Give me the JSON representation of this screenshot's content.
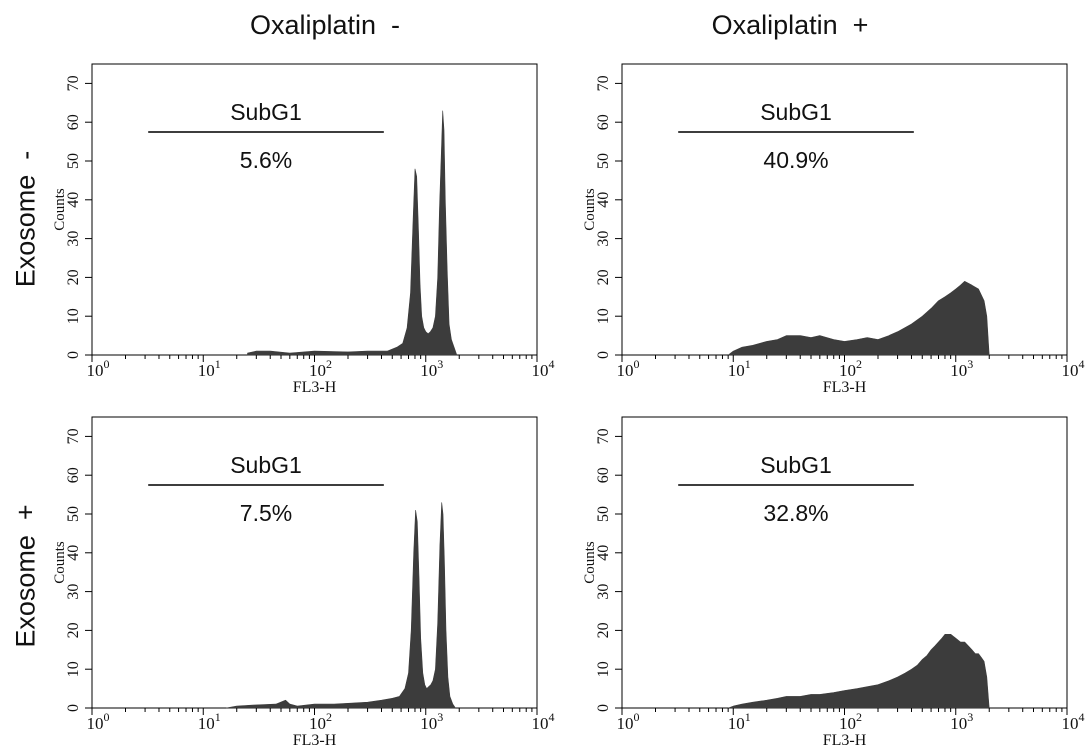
{
  "figure": {
    "column_headers": [
      "Oxaliplatin  -",
      "Oxaliplatin  +"
    ],
    "row_headers": [
      "Exosome  -",
      "Exosome  +"
    ]
  },
  "colors": {
    "histogram_fill": "#3c3c3c",
    "axis": "#000000",
    "gate_line": "#222222"
  },
  "chart_data": [
    {
      "type": "area",
      "panel": "oxaliplatin-minus-exosome-minus",
      "xlabel": "FL3-H",
      "ylabel": "Counts",
      "x_scale": "log",
      "xlim": [
        1,
        10000
      ],
      "ylim": [
        0,
        75
      ],
      "x_ticks": [
        1,
        10,
        100,
        1000,
        10000
      ],
      "x_tick_labels": [
        {
          "base": "10",
          "exp": "0"
        },
        {
          "base": "10",
          "exp": "1"
        },
        {
          "base": "10",
          "exp": "2"
        },
        {
          "base": "10",
          "exp": "3"
        },
        {
          "base": "10",
          "exp": "4"
        }
      ],
      "y_ticks": [
        0,
        10,
        20,
        30,
        40,
        50,
        60,
        70
      ],
      "y_tick_labels": [
        "0",
        "10",
        "20",
        "30",
        "40",
        "50",
        "60",
        "70"
      ],
      "gate": {
        "label": "SubG1",
        "x_range": [
          3.2,
          420
        ],
        "value_label": "5.6%"
      },
      "series": [
        {
          "x": [
            25,
            30,
            40,
            60,
            100,
            200,
            300,
            450,
            550,
            620,
            680,
            730,
            770,
            800,
            830,
            860,
            890,
            920,
            960,
            1000,
            1050,
            1100,
            1160,
            1220,
            1280,
            1330,
            1380,
            1420,
            1460,
            1500,
            1560,
            1620,
            1700,
            1800,
            1900
          ],
          "y": [
            0.5,
            1,
            1,
            0.5,
            1,
            0.8,
            1,
            1,
            2,
            3,
            7,
            16,
            35,
            48,
            46,
            32,
            18,
            10,
            7,
            6,
            5.5,
            6,
            7,
            10,
            20,
            38,
            52,
            63,
            58,
            40,
            22,
            8,
            4,
            2,
            0
          ]
        }
      ]
    },
    {
      "type": "area",
      "panel": "oxaliplatin-plus-exosome-minus",
      "xlabel": "FL3-H",
      "ylabel": "Counts",
      "x_scale": "log",
      "xlim": [
        1,
        10000
      ],
      "ylim": [
        0,
        75
      ],
      "x_ticks": [
        1,
        10,
        100,
        1000,
        10000
      ],
      "x_tick_labels": [
        {
          "base": "10",
          "exp": "0"
        },
        {
          "base": "10",
          "exp": "1"
        },
        {
          "base": "10",
          "exp": "2"
        },
        {
          "base": "10",
          "exp": "3"
        },
        {
          "base": "10",
          "exp": "4"
        }
      ],
      "y_ticks": [
        0,
        10,
        20,
        30,
        40,
        50,
        60,
        70
      ],
      "y_tick_labels": [
        "0",
        "10",
        "20",
        "30",
        "40",
        "50",
        "60",
        "70"
      ],
      "gate": {
        "label": "SubG1",
        "x_range": [
          3.2,
          420
        ],
        "value_label": "40.9%"
      },
      "series": [
        {
          "x": [
            9,
            10,
            12,
            15,
            20,
            25,
            30,
            40,
            50,
            60,
            80,
            100,
            130,
            160,
            200,
            250,
            300,
            400,
            500,
            600,
            700,
            800,
            900,
            1000,
            1100,
            1200,
            1400,
            1600,
            1800,
            1900,
            2000
          ],
          "y": [
            0,
            1,
            2,
            2.5,
            3.5,
            4,
            5,
            5,
            4.5,
            5,
            4,
            3.5,
            4,
            4.5,
            4,
            5,
            6,
            8,
            10,
            12,
            14,
            15,
            16,
            17,
            18,
            19,
            18,
            17,
            14,
            10,
            0
          ]
        }
      ]
    },
    {
      "type": "area",
      "panel": "oxaliplatin-minus-exosome-plus",
      "xlabel": "FL3-H",
      "ylabel": "Counts",
      "x_scale": "log",
      "xlim": [
        1,
        10000
      ],
      "ylim": [
        0,
        75
      ],
      "x_ticks": [
        1,
        10,
        100,
        1000,
        10000
      ],
      "x_tick_labels": [
        {
          "base": "10",
          "exp": "0"
        },
        {
          "base": "10",
          "exp": "1"
        },
        {
          "base": "10",
          "exp": "2"
        },
        {
          "base": "10",
          "exp": "3"
        },
        {
          "base": "10",
          "exp": "4"
        }
      ],
      "y_ticks": [
        0,
        10,
        20,
        30,
        40,
        50,
        60,
        70
      ],
      "y_tick_labels": [
        "0",
        "10",
        "20",
        "30",
        "40",
        "50",
        "60",
        "70"
      ],
      "gate": {
        "label": "SubG1",
        "x_range": [
          3.2,
          420
        ],
        "value_label": "7.5%"
      },
      "series": [
        {
          "x": [
            16,
            20,
            30,
            45,
            55,
            60,
            70,
            100,
            150,
            200,
            300,
            400,
            500,
            580,
            650,
            700,
            740,
            780,
            810,
            840,
            870,
            900,
            940,
            980,
            1020,
            1060,
            1110,
            1160,
            1220,
            1280,
            1340,
            1390,
            1430,
            1470,
            1520,
            1580,
            1650,
            1750,
            1850
          ],
          "y": [
            0,
            0.5,
            0.8,
            1,
            2,
            1,
            0.5,
            1,
            1,
            1.2,
            1.5,
            2,
            2.5,
            3,
            5,
            9,
            20,
            40,
            51,
            48,
            34,
            18,
            9,
            6,
            5,
            5.5,
            6,
            7,
            10,
            22,
            42,
            53,
            50,
            38,
            20,
            8,
            3,
            1,
            0
          ]
        }
      ]
    },
    {
      "type": "area",
      "panel": "oxaliplatin-plus-exosome-plus",
      "xlabel": "FL3-H",
      "ylabel": "Counts",
      "x_scale": "log",
      "xlim": [
        1,
        10000
      ],
      "ylim": [
        0,
        75
      ],
      "x_ticks": [
        1,
        10,
        100,
        1000,
        10000
      ],
      "x_tick_labels": [
        {
          "base": "10",
          "exp": "0"
        },
        {
          "base": "10",
          "exp": "1"
        },
        {
          "base": "10",
          "exp": "2"
        },
        {
          "base": "10",
          "exp": "3"
        },
        {
          "base": "10",
          "exp": "4"
        }
      ],
      "y_ticks": [
        0,
        10,
        20,
        30,
        40,
        50,
        60,
        70
      ],
      "y_tick_labels": [
        "0",
        "10",
        "20",
        "30",
        "40",
        "50",
        "60",
        "70"
      ],
      "gate": {
        "label": "SubG1",
        "x_range": [
          3.2,
          420
        ],
        "value_label": "32.8%"
      },
      "series": [
        {
          "x": [
            9,
            10,
            12,
            15,
            20,
            25,
            30,
            40,
            50,
            60,
            80,
            100,
            130,
            160,
            200,
            250,
            300,
            350,
            400,
            450,
            500,
            550,
            600,
            650,
            700,
            750,
            800,
            900,
            1000,
            1100,
            1200,
            1300,
            1400,
            1500,
            1600,
            1700,
            1800,
            1900,
            2000
          ],
          "y": [
            0,
            0.5,
            1,
            1.5,
            2,
            2.5,
            3,
            3,
            3.5,
            3.5,
            4,
            4.5,
            5,
            5.5,
            6,
            7,
            8,
            9,
            10,
            11,
            12.5,
            13.5,
            15,
            16,
            17,
            18,
            19,
            19,
            18,
            17,
            17,
            16,
            15,
            14,
            14,
            13,
            12,
            8,
            0
          ]
        }
      ]
    }
  ]
}
